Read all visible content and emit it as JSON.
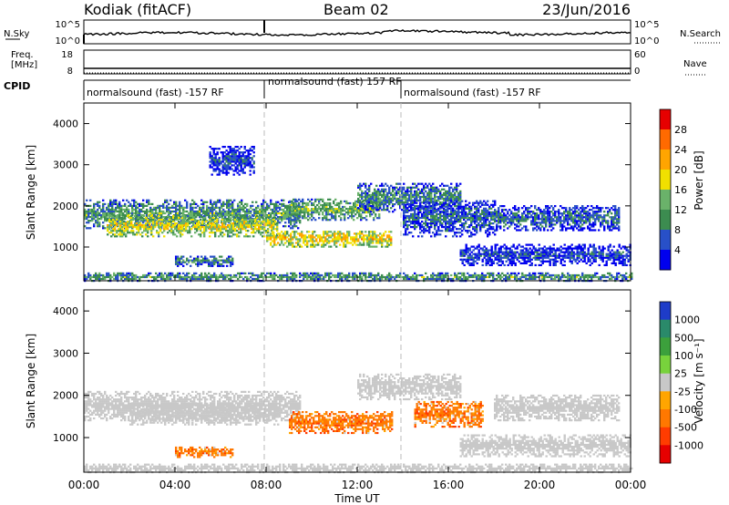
{
  "header": {
    "station": "Kodiak (fitACF)",
    "beam": "Beam 02",
    "date": "23/Jun/2016"
  },
  "nsky_panel": {
    "left_label": "N.Sky",
    "right_label": "N.Search",
    "left_ticks": [
      "10^5",
      "10^0"
    ],
    "right_ticks": [
      "10^5",
      "10^0"
    ]
  },
  "freq_panel": {
    "left_label_line1": "Freq.",
    "left_label_line2": "[MHz]",
    "right_label": "Nave",
    "left_ticks": [
      "18",
      "8"
    ],
    "right_ticks": [
      "60",
      "0"
    ]
  },
  "cpid_panel": {
    "label": "CPID",
    "segments": [
      {
        "text": "normalsound (fast) -157 RF"
      },
      {
        "text": "normalsound (fast) 157 RF"
      },
      {
        "text": "normalsound (fast) -157 RF"
      }
    ]
  },
  "time_axis": {
    "label": "Time UT",
    "ticks": [
      "00:00",
      "04:00",
      "08:00",
      "12:00",
      "16:00",
      "20:00",
      "00:00"
    ]
  },
  "chart_data": [
    {
      "type": "heatmap",
      "quantity": "Power",
      "xlabel": "Time UT",
      "ylabel": "Slant Range [km]",
      "ylim": [
        180,
        4500
      ],
      "xlim_hours": [
        0,
        24
      ],
      "yticks": [
        "1000",
        "2000",
        "3000",
        "4000"
      ],
      "colorbar_label": "Power [dB]",
      "colorbar_ticks": [
        "4",
        "8",
        "12",
        "16",
        "20",
        "24",
        "28"
      ],
      "colorbar_colors": [
        "#0000ee",
        "#2850c8",
        "#3c8c50",
        "#6ab26a",
        "#f0e000",
        "#ffa500",
        "#ff6a00",
        "#e60000"
      ],
      "regions": [
        {
          "t_start": 0.0,
          "t_end": 9.5,
          "r_center": 1800,
          "r_width": 350,
          "value": 12
        },
        {
          "t_start": 1.0,
          "t_end": 8.5,
          "r_center": 1500,
          "r_width": 250,
          "value": 18
        },
        {
          "t_start": 4.0,
          "t_end": 6.5,
          "r_center": 650,
          "r_width": 120,
          "value": 10
        },
        {
          "t_start": 5.5,
          "t_end": 7.5,
          "r_center": 3100,
          "r_width": 350,
          "value": 6
        },
        {
          "t_start": 8.0,
          "t_end": 13.5,
          "r_center": 1200,
          "r_width": 200,
          "value": 20
        },
        {
          "t_start": 9.0,
          "t_end": 13.0,
          "r_center": 1900,
          "r_width": 250,
          "value": 14
        },
        {
          "t_start": 12.0,
          "t_end": 16.5,
          "r_center": 2200,
          "r_width": 350,
          "value": 10
        },
        {
          "t_start": 14.0,
          "t_end": 18.0,
          "r_center": 1700,
          "r_width": 450,
          "value": 8
        },
        {
          "t_start": 16.5,
          "t_end": 24.0,
          "r_center": 800,
          "r_width": 250,
          "value": 6
        },
        {
          "t_start": 18.0,
          "t_end": 23.5,
          "r_center": 1700,
          "r_width": 300,
          "value": 8
        },
        {
          "t_start": 0.0,
          "t_end": 24.0,
          "r_center": 270,
          "r_width": 100,
          "value": 12
        }
      ]
    },
    {
      "type": "heatmap",
      "quantity": "Velocity",
      "xlabel": "Time UT",
      "ylabel": "Slant Range [km]",
      "ylim": [
        180,
        4500
      ],
      "xlim_hours": [
        0,
        24
      ],
      "yticks": [
        "1000",
        "2000",
        "3000",
        "4000"
      ],
      "colorbar_label": "Velocity [m s⁻¹]",
      "colorbar_ticks": [
        "1000",
        "500",
        "100",
        "25",
        "-25",
        "-100",
        "-500",
        "-1000"
      ],
      "colorbar_colors": [
        "#1e3cc8",
        "#2a8a6a",
        "#3ca03c",
        "#78d23c",
        "#c8c8c8",
        "#ffa500",
        "#ff7800",
        "#ff3c00",
        "#e60000"
      ],
      "regions": [
        {
          "t_start": 0.0,
          "t_end": 9.5,
          "r_center": 1750,
          "r_width": 350,
          "value": 0
        },
        {
          "t_start": 2.0,
          "t_end": 8.5,
          "r_center": 1550,
          "r_width": 250,
          "value": 0
        },
        {
          "t_start": 4.0,
          "t_end": 6.5,
          "r_center": 650,
          "r_width": 120,
          "value": -300
        },
        {
          "t_start": 9.0,
          "t_end": 13.5,
          "r_center": 1350,
          "r_width": 250,
          "value": -300
        },
        {
          "t_start": 12.0,
          "t_end": 16.5,
          "r_center": 2200,
          "r_width": 300,
          "value": 0
        },
        {
          "t_start": 14.5,
          "t_end": 17.5,
          "r_center": 1550,
          "r_width": 300,
          "value": -300
        },
        {
          "t_start": 16.5,
          "t_end": 24.0,
          "r_center": 800,
          "r_width": 250,
          "value": 0
        },
        {
          "t_start": 18.0,
          "t_end": 23.5,
          "r_center": 1700,
          "r_width": 300,
          "value": 0
        },
        {
          "t_start": 0.0,
          "t_end": 24.0,
          "r_center": 270,
          "r_width": 100,
          "value": 0
        }
      ]
    }
  ]
}
